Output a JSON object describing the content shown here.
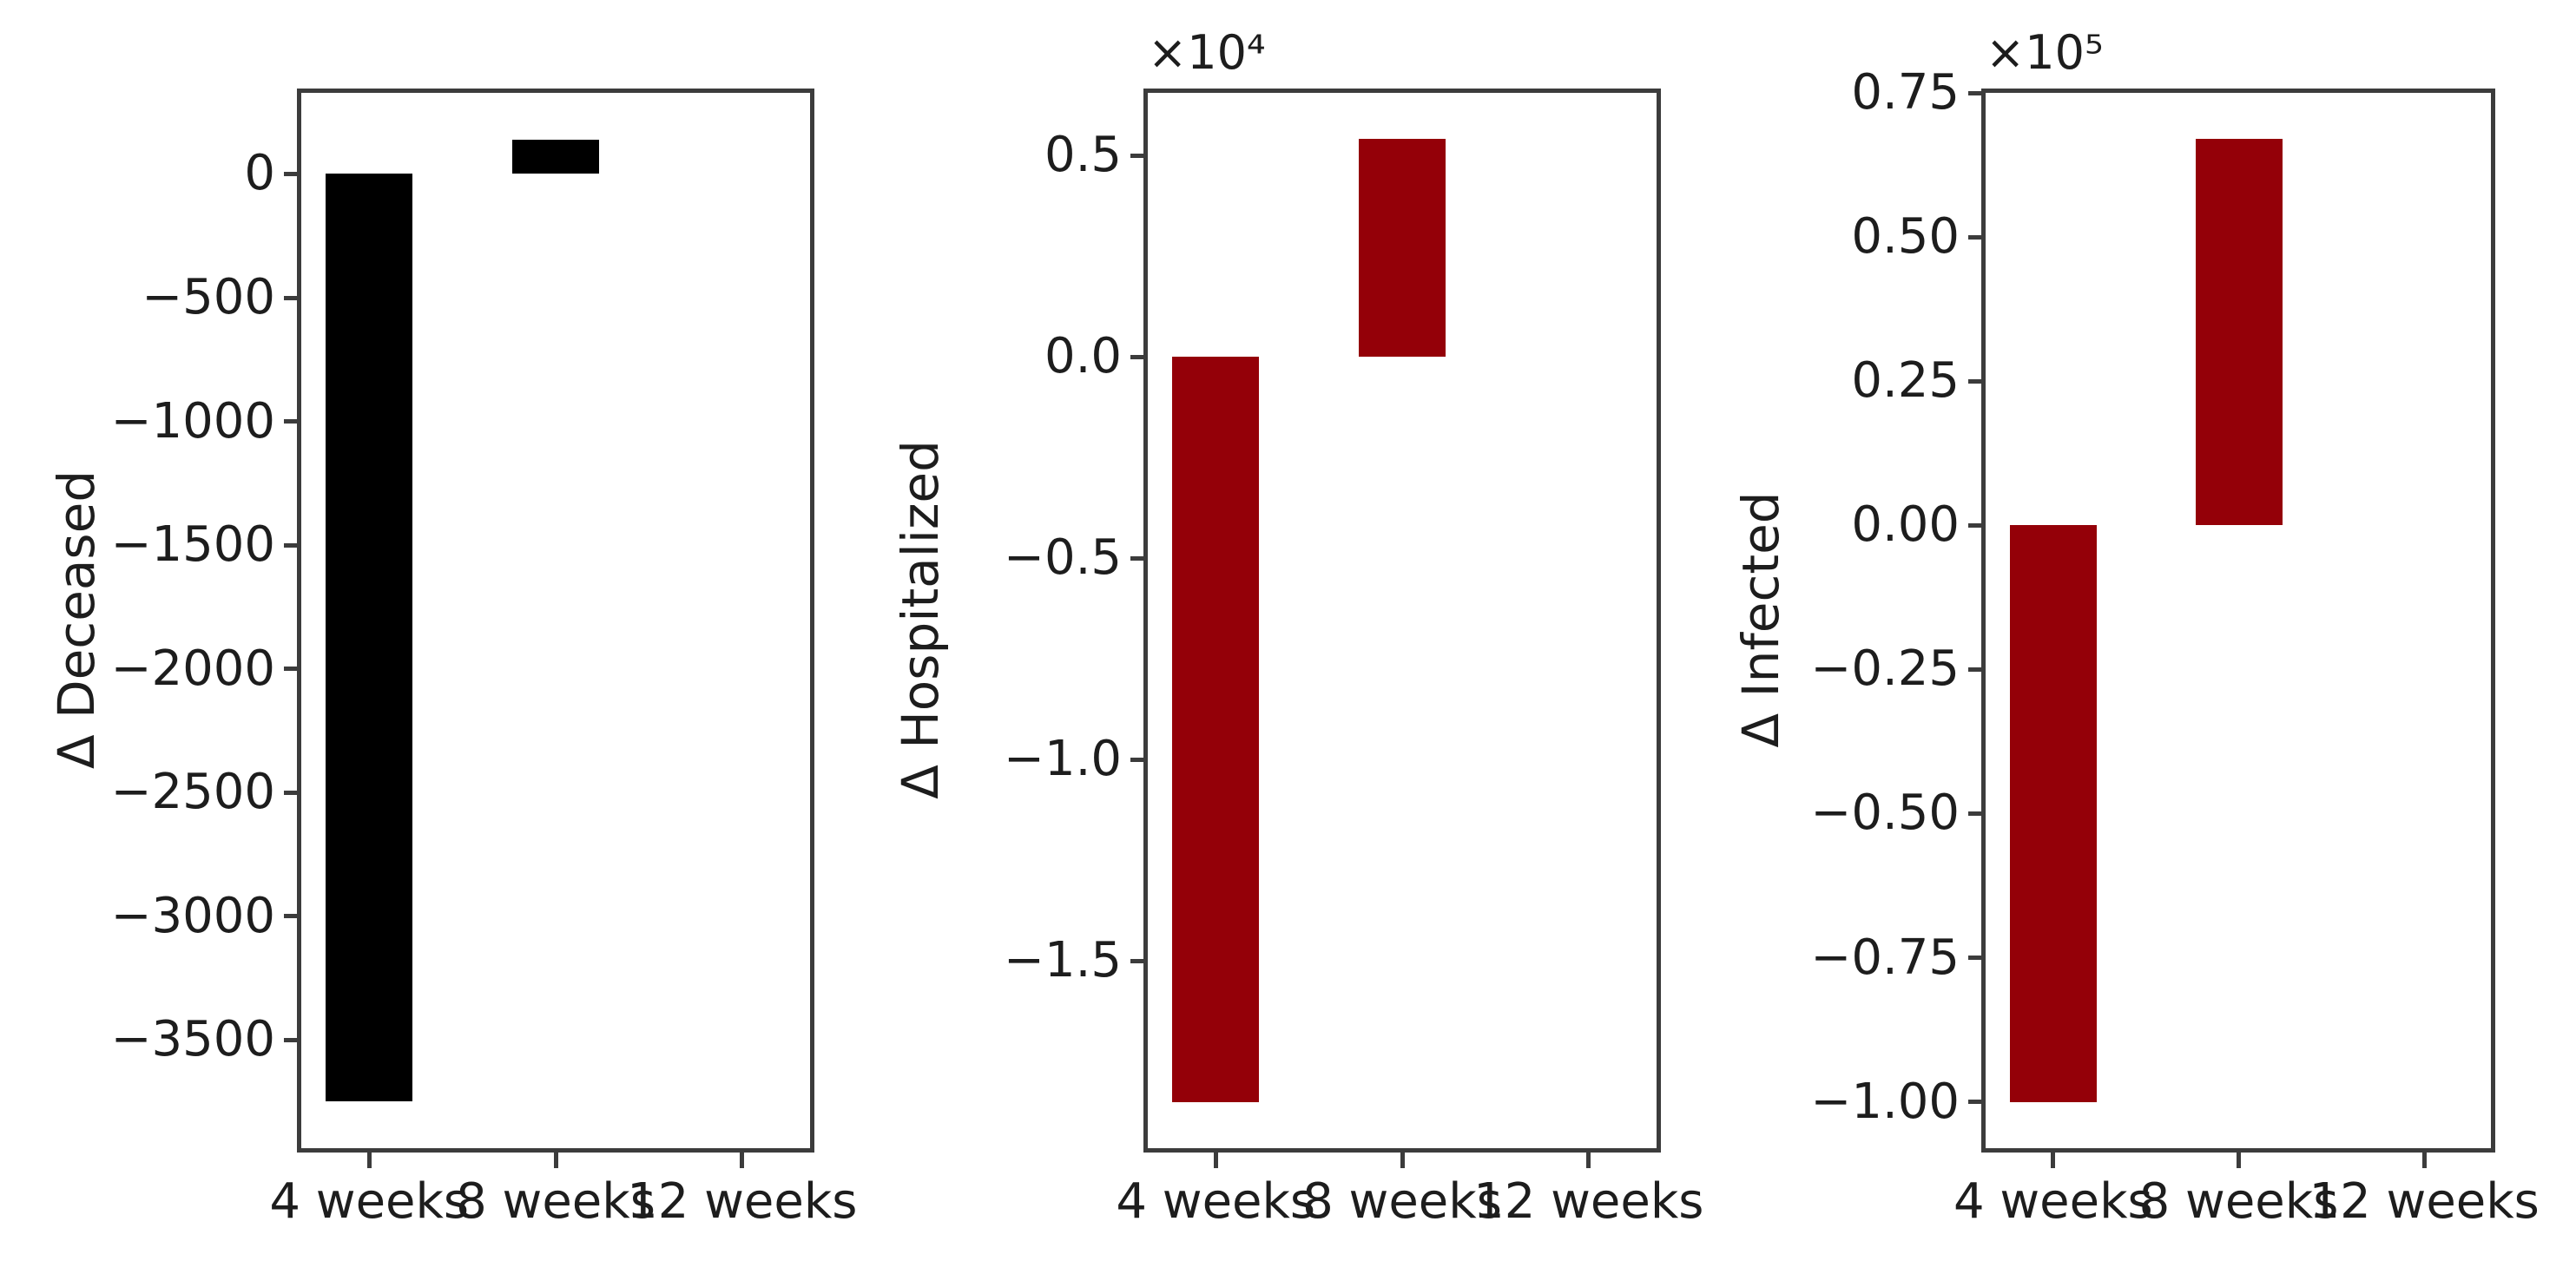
{
  "figure": {
    "background_color": "#ffffff",
    "axis_color": "#3c3c3c",
    "text_color": "#1d1d1d"
  },
  "chart_data": [
    {
      "type": "bar",
      "title": "",
      "ylabel": "Δ Deceased",
      "xlabel": "",
      "offset_text": "",
      "categories": [
        "4 weeks",
        "8 weeks",
        "12 weeks"
      ],
      "values": [
        -3750,
        140,
        0
      ],
      "bar_color": "#000000",
      "ylim": [
        -3945,
        335
      ],
      "grid": false,
      "legend": null,
      "yticks": [
        {
          "value": 0,
          "label": "0"
        },
        {
          "value": -500,
          "label": "−500"
        },
        {
          "value": -1000,
          "label": "−1000"
        },
        {
          "value": -1500,
          "label": "−1500"
        },
        {
          "value": -2000,
          "label": "−2000"
        },
        {
          "value": -2500,
          "label": "−2500"
        },
        {
          "value": -3000,
          "label": "−3000"
        },
        {
          "value": -3500,
          "label": "−3500"
        }
      ]
    },
    {
      "type": "bar",
      "title": "",
      "ylabel": "Δ Hospitalized",
      "xlabel": "",
      "offset_text": "×10⁴",
      "categories": [
        "4 weeks",
        "8 weeks",
        "12 weeks"
      ],
      "values": [
        -18500,
        5400,
        0
      ],
      "bar_color": "#940008",
      "ylim": [
        -19695,
        6595
      ],
      "grid": false,
      "legend": null,
      "yticks": [
        {
          "value": 5000,
          "label": "0.5"
        },
        {
          "value": 0,
          "label": "0.0"
        },
        {
          "value": -5000,
          "label": "−0.5"
        },
        {
          "value": -10000,
          "label": "−1.0"
        },
        {
          "value": -15000,
          "label": "−1.5"
        }
      ]
    },
    {
      "type": "bar",
      "title": "",
      "ylabel": "Δ Infected",
      "xlabel": "",
      "offset_text": "×10⁵",
      "categories": [
        "4 weeks",
        "8 weeks",
        "12 weeks"
      ],
      "values": [
        -100000,
        67000,
        0
      ],
      "bar_color": "#940008",
      "ylim": [
        -108350,
        75350
      ],
      "grid": false,
      "legend": null,
      "yticks": [
        {
          "value": 75000,
          "label": "0.75"
        },
        {
          "value": 50000,
          "label": "0.50"
        },
        {
          "value": 25000,
          "label": "0.25"
        },
        {
          "value": 0,
          "label": "0.00"
        },
        {
          "value": -25000,
          "label": "−0.25"
        },
        {
          "value": -50000,
          "label": "−0.50"
        },
        {
          "value": -75000,
          "label": "−0.75"
        },
        {
          "value": -100000,
          "label": "−1.00"
        }
      ]
    }
  ]
}
